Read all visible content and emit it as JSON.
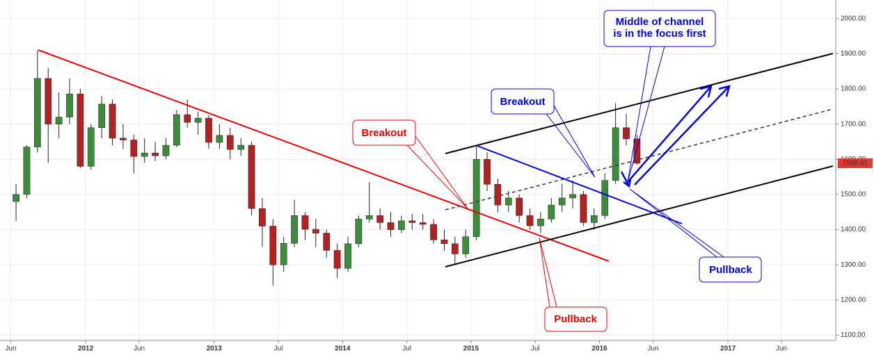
{
  "chart_data": {
    "type": "candlestick",
    "x": [
      "2011-06",
      "2011-07",
      "2011-08",
      "2011-09",
      "2011-10",
      "2011-11",
      "2011-12",
      "2012-01",
      "2012-02",
      "2012-03",
      "2012-04",
      "2012-05",
      "2012-06",
      "2012-07",
      "2012-08",
      "2012-09",
      "2012-10",
      "2012-11",
      "2012-12",
      "2013-01",
      "2013-02",
      "2013-03",
      "2013-04",
      "2013-05",
      "2013-06",
      "2013-07",
      "2013-08",
      "2013-09",
      "2013-10",
      "2013-11",
      "2013-12",
      "2014-01",
      "2014-02",
      "2014-03",
      "2014-04",
      "2014-05",
      "2014-06",
      "2014-07",
      "2014-08",
      "2014-09",
      "2014-10",
      "2014-11",
      "2014-12",
      "2015-01",
      "2015-02",
      "2015-03",
      "2015-04",
      "2015-05",
      "2015-06",
      "2015-07",
      "2015-08",
      "2015-09",
      "2015-10",
      "2015-11",
      "2015-12",
      "2016-01",
      "2016-02",
      "2016-03",
      "2016-04"
    ],
    "open": [
      1480,
      1500,
      1635,
      1830,
      1700,
      1720,
      1786,
      1580,
      1690,
      1757,
      1660,
      1655,
      1608,
      1618,
      1610,
      1640,
      1727,
      1705,
      1717,
      1648,
      1668,
      1628,
      1640,
      1460,
      1410,
      1300,
      1361,
      1440,
      1401,
      1390,
      1341,
      1290,
      1360,
      1430,
      1440,
      1420,
      1400,
      1425,
      1420,
      1415,
      1371,
      1360,
      1331,
      1380,
      1600,
      1529,
      1470,
      1490,
      1440,
      1411,
      1430,
      1470,
      1490,
      1500,
      1420,
      1440,
      1540,
      1690,
      1658
    ],
    "high": [
      1530,
      1640,
      1910,
      1860,
      1790,
      1830,
      1800,
      1700,
      1780,
      1770,
      1700,
      1670,
      1660,
      1650,
      1660,
      1740,
      1770,
      1735,
      1725,
      1700,
      1690,
      1660,
      1650,
      1490,
      1430,
      1380,
      1485,
      1450,
      1430,
      1400,
      1360,
      1380,
      1440,
      1535,
      1460,
      1450,
      1440,
      1445,
      1445,
      1430,
      1400,
      1380,
      1400,
      1640,
      1620,
      1545,
      1510,
      1500,
      1460,
      1450,
      1490,
      1530,
      1540,
      1510,
      1460,
      1560,
      1760,
      1730,
      1670
    ],
    "low": [
      1425,
      1490,
      1620,
      1590,
      1660,
      1700,
      1575,
      1570,
      1660,
      1640,
      1630,
      1560,
      1590,
      1595,
      1600,
      1635,
      1690,
      1670,
      1630,
      1630,
      1600,
      1610,
      1440,
      1350,
      1240,
      1280,
      1350,
      1370,
      1350,
      1320,
      1262,
      1280,
      1350,
      1420,
      1400,
      1380,
      1390,
      1400,
      1400,
      1360,
      1340,
      1300,
      1320,
      1370,
      1510,
      1450,
      1450,
      1420,
      1400,
      1390,
      1420,
      1450,
      1460,
      1410,
      1400,
      1430,
      1530,
      1640,
      1585
    ],
    "close": [
      1500,
      1635,
      1830,
      1700,
      1720,
      1786,
      1580,
      1690,
      1757,
      1660,
      1655,
      1608,
      1618,
      1610,
      1640,
      1727,
      1705,
      1717,
      1648,
      1668,
      1628,
      1640,
      1460,
      1410,
      1300,
      1361,
      1440,
      1401,
      1390,
      1341,
      1290,
      1360,
      1430,
      1440,
      1420,
      1400,
      1425,
      1420,
      1415,
      1371,
      1360,
      1331,
      1380,
      1600,
      1529,
      1470,
      1490,
      1440,
      1411,
      1430,
      1470,
      1490,
      1500,
      1420,
      1440,
      1540,
      1690,
      1658,
      1588.81
    ],
    "up_color": "#3d8b3d",
    "down_color": "#b22222",
    "last_price": 1588.81,
    "last_price_color": "#e53935",
    "xlim": [
      "2011-05",
      "2017-11"
    ],
    "xticks": [
      {
        "value": "2011-06",
        "label": "Jun"
      },
      {
        "value": "2012-01",
        "label": "2012"
      },
      {
        "value": "2012-06",
        "label": "Jun"
      },
      {
        "value": "2013-01",
        "label": "2013"
      },
      {
        "value": "2013-07",
        "label": "Jul"
      },
      {
        "value": "2014-01",
        "label": "2014"
      },
      {
        "value": "2014-07",
        "label": "Jul"
      },
      {
        "value": "2015-01",
        "label": "2015"
      },
      {
        "value": "2015-07",
        "label": "Jul"
      },
      {
        "value": "2016-01",
        "label": "2016"
      },
      {
        "value": "2016-06",
        "label": "Jun"
      },
      {
        "value": "2017-01",
        "label": "2017"
      },
      {
        "value": "2017-06",
        "label": "Jun"
      }
    ],
    "ylim": [
      1085,
      2053
    ],
    "yticks": [
      {
        "value": 1100,
        "label": "1100.00"
      },
      {
        "value": 1200,
        "label": "1200.00"
      },
      {
        "value": 1300,
        "label": "1300.00"
      },
      {
        "value": 1400,
        "label": "1400.00"
      },
      {
        "value": 1500,
        "label": "1500.00"
      },
      {
        "value": 1600,
        "label": "1600.00"
      },
      {
        "value": 1700,
        "label": "1700.00"
      },
      {
        "value": 1800,
        "label": "1800.00"
      },
      {
        "value": 1900,
        "label": "1900.00"
      },
      {
        "value": 2000,
        "label": "2000.00"
      }
    ],
    "grid": true,
    "annotations": [
      {
        "lines": [
          "Middle of channel",
          "is in the focus first"
        ]
      },
      {
        "lines": [
          "Breakout"
        ]
      },
      {
        "lines": [
          "Breakout"
        ]
      },
      {
        "lines": [
          "Pullback"
        ]
      },
      {
        "lines": [
          "Pullback"
        ]
      }
    ]
  }
}
